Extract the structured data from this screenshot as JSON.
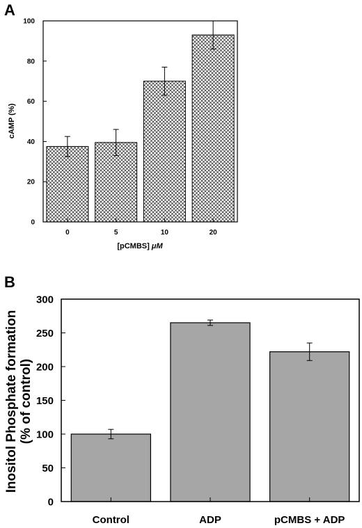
{
  "chart_data": [
    {
      "panel": "A",
      "type": "bar",
      "categories": [
        "0",
        "5",
        "10",
        "20"
      ],
      "values": [
        37.5,
        39.5,
        70,
        93
      ],
      "errors": [
        5,
        6.5,
        7,
        7
      ],
      "xlabel_prefix": "[pCMBS]",
      "xlabel_unit": "μM",
      "ylabel": "cAMP (%)",
      "ylim": [
        0,
        100
      ],
      "yticks": [
        0,
        20,
        40,
        60,
        80,
        100
      ],
      "bar_fill": "crosshatch",
      "grid": false
    },
    {
      "panel": "B",
      "type": "bar",
      "categories": [
        "Control",
        "ADP",
        "pCMBS + ADP"
      ],
      "values": [
        100,
        265,
        222
      ],
      "errors": [
        7,
        4,
        13
      ],
      "ylabel_line1": "Inositol Phosphate formation",
      "ylabel_line2": "(% of control)",
      "ylim": [
        0,
        300
      ],
      "yticks": [
        0,
        50,
        100,
        150,
        200,
        250,
        300
      ],
      "bar_color": "#a6a6a6",
      "grid": false
    }
  ]
}
